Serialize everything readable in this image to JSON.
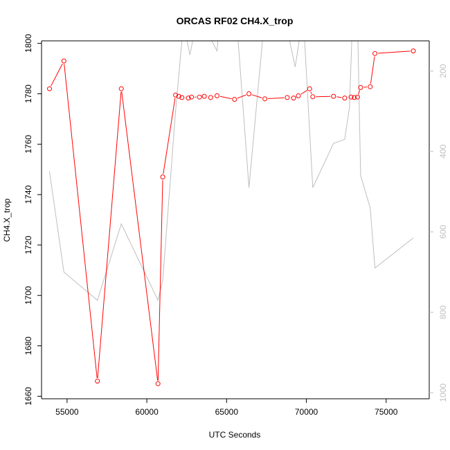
{
  "chart_data": {
    "type": "line",
    "title": "ORCAS RF02 CH4.X_trop",
    "xlabel": "UTC Seconds",
    "ylabel": "CH4.X_trop",
    "xlim": [
      53400,
      77700
    ],
    "ylim": [
      1659,
      1801
    ],
    "y2lim": [
      1015,
      125
    ],
    "y2_reversed": true,
    "x_ticks": [
      55000,
      60000,
      65000,
      70000,
      75000
    ],
    "y_ticks": [
      1660,
      1680,
      1700,
      1720,
      1740,
      1760,
      1780,
      1800
    ],
    "y2_ticks": [
      200,
      400,
      600,
      800,
      1000
    ],
    "colors": {
      "ch4": "#ff0000",
      "secondary": "#bebebe",
      "axis": "#000000",
      "axis_right": "#c0c0c0"
    },
    "series": [
      {
        "name": "",
        "axis": "left",
        "style": "line+circles",
        "x": [
          53900,
          54800,
          56900,
          58400,
          60700,
          61000,
          61800,
          62000,
          62200,
          62600,
          62800,
          63300,
          63600,
          64000,
          64400,
          65500,
          66400,
          67400,
          68800,
          69200,
          69500,
          70200,
          70400,
          71700,
          72400,
          72800,
          73000,
          73200,
          73400,
          74000,
          74300,
          76700
        ],
        "y": [
          1782,
          1793,
          1666,
          1782,
          1665,
          1747,
          1779.5,
          1779,
          1778.5,
          1778.3,
          1778.7,
          1778.7,
          1779,
          1778.5,
          1779.2,
          1777.8,
          1780,
          1778,
          1778.5,
          1778.3,
          1779.2,
          1782,
          1778.8,
          1779,
          1778.3,
          1778.7,
          1778.5,
          1778.7,
          1782.5,
          1782.8,
          1796,
          1797
        ]
      },
      {
        "name": "",
        "axis": "right",
        "style": "line",
        "x": [
          53900,
          54800,
          56900,
          58400,
          60700,
          61000,
          61800,
          62300,
          62700,
          63200,
          64400,
          64600,
          65600,
          66400,
          67400,
          68600,
          69300,
          69800,
          70400,
          71700,
          72400,
          72700,
          72900,
          73200,
          73400,
          74000,
          74300,
          76700
        ],
        "y": [
          450,
          700,
          770,
          580,
          770,
          720,
          300,
          80,
          160,
          60,
          150,
          60,
          60,
          490,
          60,
          60,
          190,
          60,
          490,
          380,
          370,
          290,
          60,
          60,
          460,
          540,
          690,
          615
        ]
      }
    ]
  }
}
